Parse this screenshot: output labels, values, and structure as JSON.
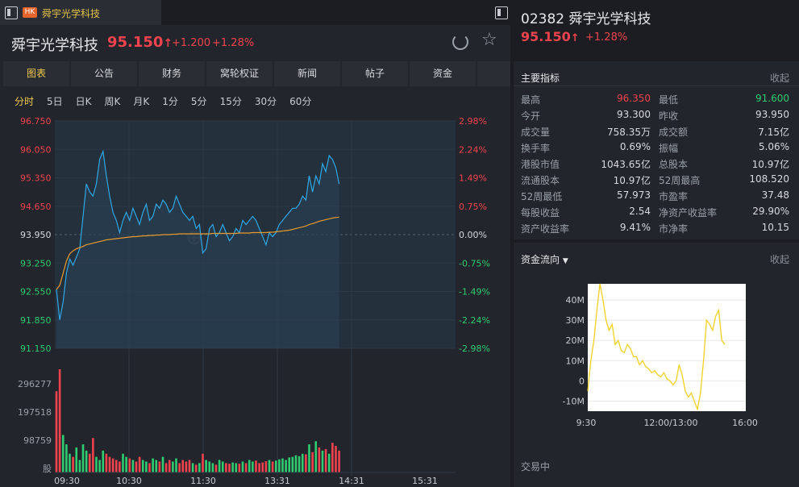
{
  "tabbar": {
    "badge": "HK",
    "title": "舜宇光学科技"
  },
  "header": {
    "name": "舜宇光学科技",
    "price": "95.150",
    "arrow": "↑",
    "change": "+1.200",
    "change_pct": "+1.28%"
  },
  "subtabs": [
    "图表",
    "公告",
    "财务",
    "窝轮权证",
    "新闻",
    "帖子",
    "资金",
    ""
  ],
  "periods": [
    "分时",
    "5日",
    "日K",
    "周K",
    "月K",
    "1分",
    "5分",
    "15分",
    "30分",
    "60分"
  ],
  "colors": {
    "up": "#f0434d",
    "down": "#2fcc71",
    "accent": "#f2c94c",
    "price_line": "#2ea8e6",
    "avg_line": "#e89a2e"
  },
  "chart_data": [
    {
      "type": "line",
      "x_ticks": [
        "09:30",
        "10:30",
        "11:30",
        "13:31",
        "14:31",
        "15:31"
      ],
      "price_ticks": [
        "96.750",
        "96.050",
        "95.350",
        "94.650",
        "93.950",
        "93.250",
        "92.550",
        "91.850",
        "91.150"
      ],
      "pct_ticks": [
        "2.98%",
        "2.24%",
        "1.49%",
        "0.75%",
        "0.00%",
        "-0.75%",
        "-1.49%",
        "-2.24%",
        "-2.98%"
      ],
      "ylim": [
        91.15,
        96.75
      ],
      "prev_close": 93.95,
      "series": [
        {
          "values": [
            92.6,
            91.85,
            92.3,
            93.0,
            93.35,
            93.2,
            93.4,
            93.6,
            94.4,
            95.2,
            95.0,
            94.9,
            95.2,
            95.8,
            96.0,
            95.4,
            94.9,
            94.5,
            94.3,
            94.0,
            94.3,
            94.5,
            94.3,
            94.6,
            94.4,
            94.2,
            94.5,
            94.7,
            94.3,
            94.4,
            94.7,
            94.6,
            94.8,
            94.7,
            94.5,
            94.6,
            94.9,
            94.7,
            94.5,
            94.4,
            94.3,
            94.4,
            94.1,
            94.2,
            93.5,
            93.6,
            94.1,
            94.2,
            93.9,
            94.0,
            94.2,
            94.0,
            93.8,
            93.9,
            94.1,
            94.0,
            94.3,
            94.2,
            94.3,
            94.4,
            94.3,
            94.1,
            93.9,
            93.7,
            94.0,
            93.9,
            94.0,
            94.2,
            94.3,
            94.4,
            94.5,
            94.6,
            94.6,
            94.7,
            94.9,
            94.8,
            95.4,
            95.0,
            95.4,
            95.2,
            95.7,
            95.5,
            95.9,
            95.8,
            95.6,
            95.2
          ]
        },
        {
          "values": [
            92.6,
            92.7,
            93.0,
            93.3,
            93.48,
            93.55,
            93.6,
            93.63,
            93.66,
            93.7,
            93.72,
            93.74,
            93.76,
            93.78,
            93.8,
            93.82,
            93.83,
            93.84,
            93.85,
            93.86,
            93.87,
            93.88,
            93.89,
            93.9,
            93.9,
            93.91,
            93.92,
            93.92,
            93.93,
            93.93,
            93.94,
            93.94,
            93.95,
            93.95,
            93.95,
            93.96,
            93.96,
            93.97,
            93.97,
            93.97,
            93.97,
            93.97,
            93.97,
            93.97,
            93.97,
            93.97,
            93.97,
            93.98,
            93.98,
            93.98,
            93.98,
            93.98,
            93.98,
            93.98,
            93.98,
            93.99,
            93.99,
            93.99,
            93.99,
            94.0,
            94.0,
            94.0,
            94.0,
            94.0,
            94.01,
            94.01,
            94.02,
            94.03,
            94.04,
            94.05,
            94.06,
            94.08,
            94.1,
            94.12,
            94.14,
            94.16,
            94.2,
            94.22,
            94.25,
            94.28,
            94.3,
            94.32,
            94.34,
            94.36,
            94.37,
            94.38
          ]
        }
      ],
      "volume_ticks": [
        "296277",
        "197518",
        "98759",
        "股"
      ],
      "volume_max": 330000,
      "volume": [
        260000,
        330000,
        120000,
        90000,
        60000,
        50000,
        80000,
        40000,
        90000,
        70000,
        60000,
        110000,
        50000,
        40000,
        70000,
        60000,
        50000,
        45000,
        40000,
        35000,
        60000,
        50000,
        45000,
        40000,
        35000,
        50000,
        40000,
        35000,
        30000,
        45000,
        40000,
        35000,
        50000,
        30000,
        40000,
        35000,
        45000,
        30000,
        40000,
        35000,
        40000,
        30000,
        25000,
        30000,
        60000,
        40000,
        35000,
        30000,
        25000,
        40000,
        35000,
        30000,
        28000,
        32000,
        30000,
        28000,
        35000,
        30000,
        40000,
        35000,
        38000,
        30000,
        32000,
        36000,
        40000,
        35000,
        38000,
        42000,
        45000,
        40000,
        48000,
        50000,
        55000,
        52000,
        60000,
        58000,
        90000,
        65000,
        100000,
        80000,
        70000,
        75000,
        60000,
        95000,
        85000,
        70000
      ]
    },
    {
      "type": "line",
      "title": "资金流向",
      "y_ticks": [
        "40M",
        "30M",
        "20M",
        "10M",
        "0",
        "-10M"
      ],
      "ylim": [
        -15,
        48
      ],
      "x_ticks": [
        "9:30",
        "12:00/13:00",
        "16:00"
      ],
      "values": [
        -5,
        10,
        20,
        35,
        48,
        40,
        30,
        25,
        28,
        18,
        20,
        15,
        14,
        18,
        16,
        12,
        12,
        8,
        10,
        7,
        6,
        4,
        5,
        3,
        2,
        4,
        1,
        0,
        -2,
        0,
        8,
        3,
        -5,
        -8,
        -6,
        -10,
        -14,
        -6,
        10,
        30,
        28,
        25,
        32,
        35,
        20,
        18
      ]
    }
  ],
  "right": {
    "code_name": "02382 舜宇光学科技",
    "price": "95.150",
    "arrow": "↑",
    "change_pct": "+1.28%",
    "indicators_title": "主要指标",
    "collapse": "收起",
    "indicators": [
      [
        "最高",
        "96.350",
        "最低",
        "91.600"
      ],
      [
        "今开",
        "93.300",
        "昨收",
        "93.950"
      ],
      [
        "成交量",
        "758.35万",
        "成交额",
        "7.15亿"
      ],
      [
        "换手率",
        "0.69%",
        "振幅",
        "5.06%"
      ],
      [
        "港股市值",
        "1043.65亿",
        "总股本",
        "10.97亿"
      ],
      [
        "流通股本",
        "10.97亿",
        "52周最高",
        "108.520"
      ],
      [
        "52周最低",
        "57.973",
        "市盈率",
        "37.48"
      ],
      [
        "每股收益",
        "2.54",
        "净资产收益率",
        "29.90%"
      ],
      [
        "资产收益率",
        "9.41%",
        "市净率",
        "10.15"
      ]
    ],
    "flow_title": "资金流向",
    "flow_caret": "▼",
    "status": "交易中"
  }
}
